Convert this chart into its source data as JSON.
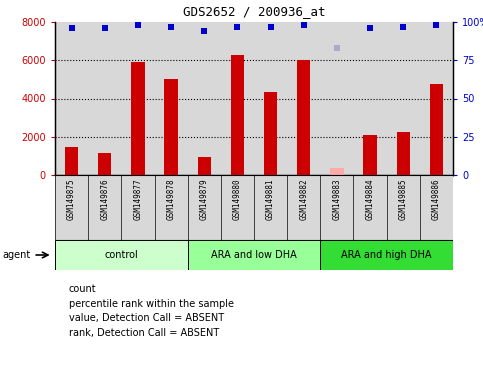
{
  "title": "GDS2652 / 200936_at",
  "samples": [
    "GSM149875",
    "GSM149876",
    "GSM149877",
    "GSM149878",
    "GSM149879",
    "GSM149880",
    "GSM149881",
    "GSM149882",
    "GSM149883",
    "GSM149884",
    "GSM149885",
    "GSM149886"
  ],
  "bar_values": [
    1450,
    1150,
    5900,
    5000,
    950,
    6250,
    4350,
    6000,
    null,
    2100,
    2250,
    4750
  ],
  "absent_bar_value": 350,
  "absent_bar_index": 8,
  "bar_color": "#cc0000",
  "absent_bar_color": "#ffaaaa",
  "percentile_values": [
    96,
    96,
    98,
    97,
    94,
    97,
    97,
    98,
    null,
    96,
    97,
    98
  ],
  "absent_percentile_value": 83,
  "absent_percentile_index": 8,
  "percentile_color": "#0000cc",
  "absent_percentile_color": "#aaaacc",
  "ylim_left": [
    0,
    8000
  ],
  "ylim_right": [
    0,
    100
  ],
  "yticks_left": [
    0,
    2000,
    4000,
    6000,
    8000
  ],
  "yticks_right": [
    0,
    25,
    50,
    75,
    100
  ],
  "grid_lines": [
    2000,
    4000,
    6000
  ],
  "groups": [
    {
      "label": "control",
      "start": 0,
      "end": 3,
      "color": "#ccffcc"
    },
    {
      "label": "ARA and low DHA",
      "start": 4,
      "end": 7,
      "color": "#99ff99"
    },
    {
      "label": "ARA and high DHA",
      "start": 8,
      "end": 11,
      "color": "#33dd33"
    }
  ],
  "agent_label": "agent",
  "plot_bg_color": "#d8d8d8",
  "label_bg_color": "#d8d8d8",
  "left_axis_color": "#cc0000",
  "right_axis_color": "#0000cc",
  "bar_width": 0.4,
  "title_fontsize": 9,
  "tick_fontsize": 7,
  "sample_fontsize": 5.5,
  "group_fontsize": 7,
  "legend_fontsize": 7
}
